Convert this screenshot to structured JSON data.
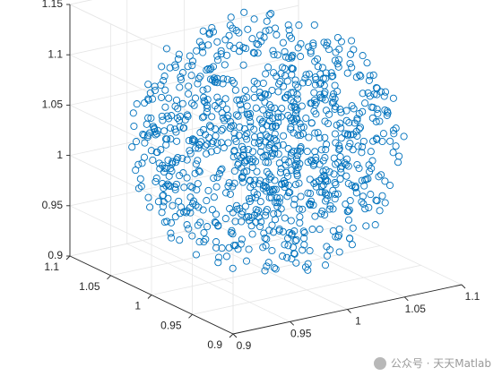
{
  "chart_data": {
    "type": "scatter3d",
    "title": "",
    "xlabel": "",
    "ylabel": "",
    "zlabel": "",
    "xlim": [
      0.9,
      1.1
    ],
    "ylim": [
      0.9,
      1.1
    ],
    "zlim": [
      0.9,
      1.15
    ],
    "x_ticks": [
      "0.9",
      "0.95",
      "1",
      "1.05",
      "1.1"
    ],
    "y_ticks": [
      "0.9",
      "0.95",
      "1",
      "1.05",
      "1.1"
    ],
    "z_ticks": [
      "0.9",
      "0.95",
      "1",
      "1.05",
      "1.1",
      "1.15"
    ],
    "grid": true,
    "marker": "open-circle",
    "point_count": 1000,
    "sampling": "uniform random points filling an ellipsoid centered at (1, 1, 1.025)",
    "marker_color": "#0072BD"
  },
  "watermark": {
    "text": "公众号 · 天天Matlab"
  },
  "colors": {
    "axis": "#262626",
    "grid": "#e6e6e6"
  }
}
